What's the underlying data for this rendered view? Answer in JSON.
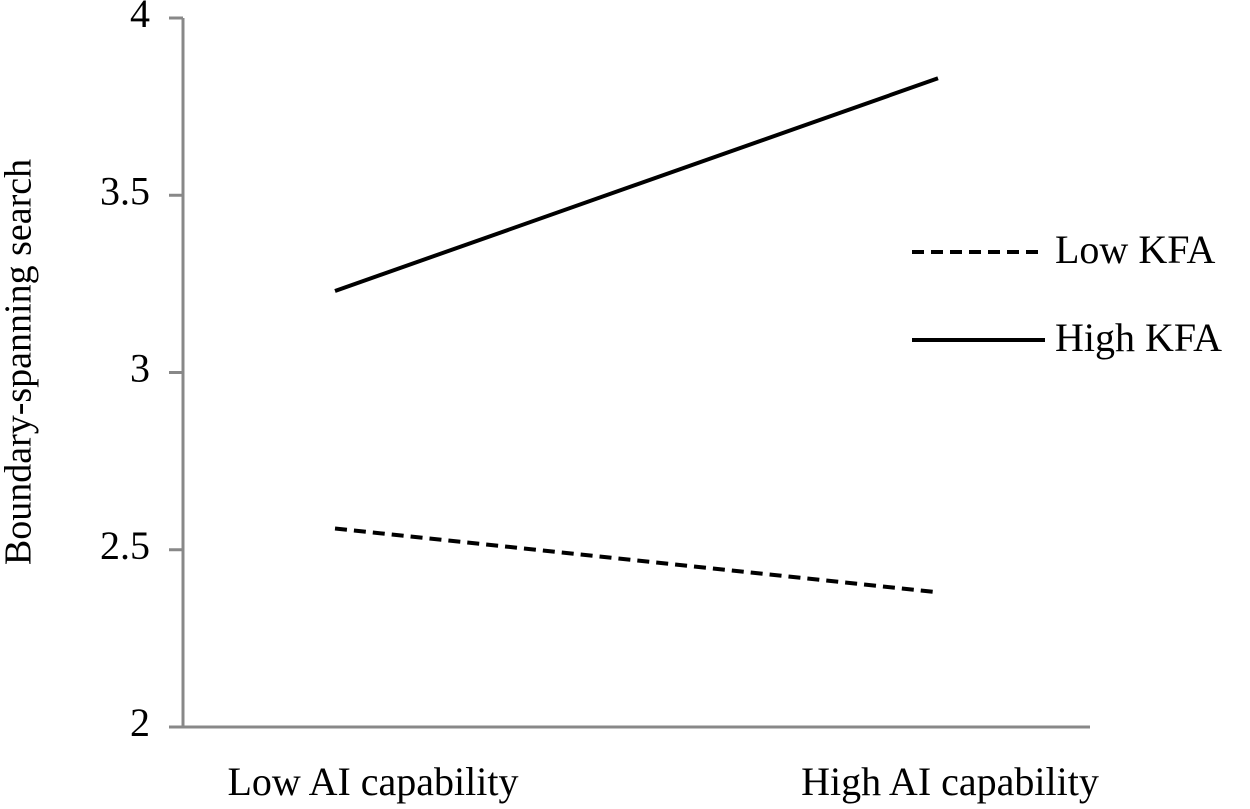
{
  "chart_data": {
    "type": "line",
    "y_label": "Boundary-spanning search",
    "categories": [
      "Low AI capability",
      "High AI capability"
    ],
    "series": [
      {
        "name": "Low KFA",
        "color": "#000000",
        "linestyle": "dashed",
        "values": [
          2.56,
          2.38
        ]
      },
      {
        "name": "High KFA",
        "color": "#000000",
        "linestyle": "solid",
        "values": [
          3.23,
          3.83
        ]
      }
    ],
    "ylim": [
      2,
      4
    ],
    "yticks": [
      2,
      2.5,
      3,
      3.5,
      4
    ],
    "grid": false,
    "legend": "right"
  }
}
